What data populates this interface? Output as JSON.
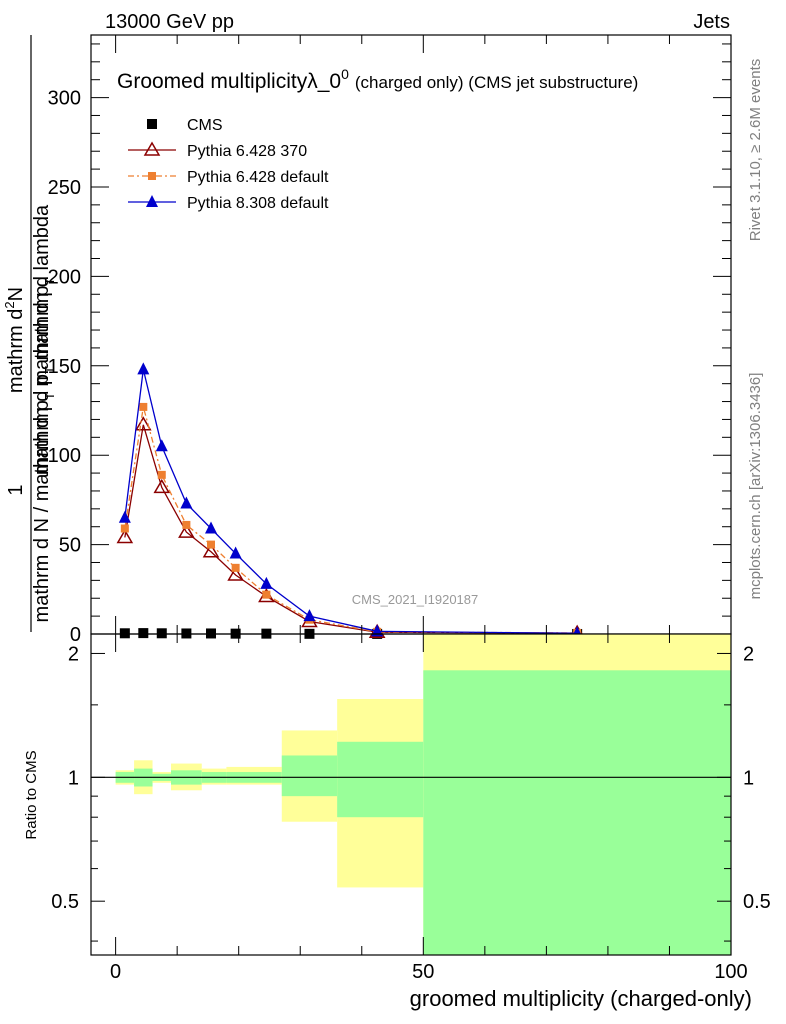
{
  "header": {
    "left": "13000 GeV pp",
    "right": "Jets"
  },
  "side_labels": {
    "rivet": "Rivet 3.1.10, ≥ 2.6M events",
    "mcplots": "mcplots.cern.ch [arXiv:1306.3436]"
  },
  "chart_data": [
    {
      "type": "line",
      "title_main": "Groomed multiplicityλ_0",
      "title_sup": "0",
      "title_note": "(charged only) (CMS jet substructure)",
      "watermark": "CMS_2021_I1920187",
      "ylabel_lines": [
        "mathrm dN",
        "mathrm d p_T mathrm d lambda",
        "1",
        "mathrm d N / mathrm d p_T mathrm d p_T"
      ],
      "ylabel_parts": {
        "num": "mathrm d",
        "num_sup": "2",
        "num_end": "N",
        "den": "mathrm d p",
        "den_sub": "T",
        "den_end": " mathrm d lambda",
        "one": "1",
        "lower": "mathrm d N / mathrm d p",
        "lower_sub": "T",
        "lower_end": " mathrm d p",
        "lower_sub2": "T"
      },
      "xlim": [
        -4,
        100
      ],
      "ylim": [
        0,
        335
      ],
      "yticks": [
        0,
        50,
        100,
        150,
        200,
        250,
        300
      ],
      "legend_position": "top-left",
      "series": [
        {
          "name": "CMS",
          "color": "#000000",
          "marker": "square",
          "x": [
            1.5,
            4.5,
            7.5,
            11.5,
            15.5,
            19.5,
            24.5,
            31.5,
            42.5,
            75
          ],
          "y": [
            0.4,
            0.5,
            0.4,
            0.3,
            0.3,
            0.2,
            0.2,
            0.1,
            0.05,
            0.01
          ]
        },
        {
          "name": "Pythia 6.428 370",
          "color": "#8b0000",
          "marker": "open-triangle",
          "x": [
            1.5,
            4.5,
            7.5,
            11.5,
            15.5,
            19.5,
            24.5,
            31.5,
            42.5,
            75
          ],
          "y": [
            54,
            117,
            82,
            57,
            46,
            33,
            21,
            7,
            1,
            0.5
          ]
        },
        {
          "name": "Pythia 6.428 default",
          "color": "#ee7f30",
          "marker": "square-small",
          "x": [
            1.5,
            4.5,
            7.5,
            11.5,
            15.5,
            19.5,
            24.5,
            31.5,
            42.5,
            75
          ],
          "y": [
            59,
            127,
            89,
            61,
            50,
            37,
            22,
            8,
            1.2,
            0.6
          ]
        },
        {
          "name": "Pythia 8.308 default",
          "color": "#0000cc",
          "marker": "filled-triangle",
          "x": [
            1.5,
            4.5,
            7.5,
            11.5,
            15.5,
            19.5,
            24.5,
            31.5,
            42.5,
            75
          ],
          "y": [
            65,
            148,
            105,
            73,
            59,
            45,
            28,
            10,
            1.5,
            0.4
          ]
        }
      ]
    },
    {
      "type": "area",
      "ylabel": "Ratio to CMS",
      "xlabel": "groomed multiplicity (charged-only)",
      "xlim": [
        -4,
        100
      ],
      "xticks": [
        0,
        50,
        100
      ],
      "ylim": [
        0.37,
        2.23
      ],
      "yticks": [
        0.5,
        1,
        2
      ],
      "reference_line": 1,
      "bins": [
        {
          "lo": 0,
          "hi": 3,
          "inner": [
            0.97,
            1.03
          ],
          "outer": [
            0.96,
            1.04
          ]
        },
        {
          "lo": 3,
          "hi": 6,
          "inner": [
            0.95,
            1.05
          ],
          "outer": [
            0.91,
            1.1
          ]
        },
        {
          "lo": 6,
          "hi": 9,
          "inner": [
            0.98,
            1.02
          ],
          "outer": [
            0.97,
            1.03
          ]
        },
        {
          "lo": 9,
          "hi": 14,
          "inner": [
            0.96,
            1.04
          ],
          "outer": [
            0.93,
            1.08
          ]
        },
        {
          "lo": 14,
          "hi": 18,
          "inner": [
            0.97,
            1.03
          ],
          "outer": [
            0.96,
            1.05
          ]
        },
        {
          "lo": 18,
          "hi": 22,
          "inner": [
            0.97,
            1.03
          ],
          "outer": [
            0.96,
            1.06
          ]
        },
        {
          "lo": 22,
          "hi": 27,
          "inner": [
            0.97,
            1.03
          ],
          "outer": [
            0.96,
            1.06
          ]
        },
        {
          "lo": 27,
          "hi": 36,
          "inner": [
            0.9,
            1.13
          ],
          "outer": [
            0.78,
            1.3
          ]
        },
        {
          "lo": 36,
          "hi": 50,
          "inner": [
            0.8,
            1.22
          ],
          "outer": [
            0.54,
            1.55
          ]
        },
        {
          "lo": 50,
          "hi": 100,
          "inner": [
            0.37,
            1.82
          ],
          "outer": [
            0.37,
            2.23
          ]
        }
      ],
      "inner_color": "#99ff99",
      "outer_color": "#ffff99"
    }
  ]
}
